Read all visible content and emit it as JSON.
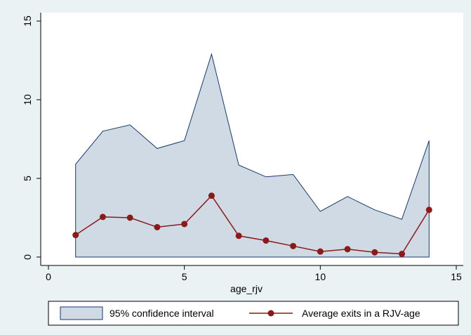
{
  "chart_data": {
    "type": "line",
    "xlabel": "age_rjv",
    "ylabel": "",
    "xlim": [
      0,
      15
    ],
    "ylim": [
      0,
      15
    ],
    "xticks": [
      0,
      5,
      10,
      15
    ],
    "yticks": [
      0,
      5,
      10,
      15
    ],
    "grid": false,
    "legend_position": "bottom",
    "x": [
      1,
      2,
      3,
      4,
      5,
      6,
      7,
      8,
      9,
      10,
      11,
      12,
      13,
      14
    ],
    "series": [
      {
        "name": "95% confidence interval",
        "kind": "area",
        "upper": [
          5.9,
          8.0,
          8.4,
          6.9,
          7.4,
          12.9,
          5.85,
          5.1,
          5.25,
          2.9,
          3.85,
          3.0,
          2.4,
          7.4
        ],
        "lower": [
          0,
          0,
          0,
          0,
          0,
          0,
          0,
          0,
          0,
          0,
          0,
          0,
          0,
          0
        ],
        "fill_color": "#d0dae4",
        "line_color": "#1a3a6b"
      },
      {
        "name": "Average exits in a RJV-age",
        "kind": "line",
        "values": [
          1.4,
          2.55,
          2.5,
          1.9,
          2.1,
          3.9,
          1.35,
          1.05,
          0.7,
          0.35,
          0.5,
          0.3,
          0.2,
          3.0
        ],
        "color": "#8b1a1a"
      }
    ]
  },
  "colors": {
    "background": "#eaf2f3",
    "plot_background": "#ffffff",
    "ci_fill": "#d0dae4",
    "ci_line": "#1a3a6b",
    "mean_line": "#8b1a1a"
  }
}
